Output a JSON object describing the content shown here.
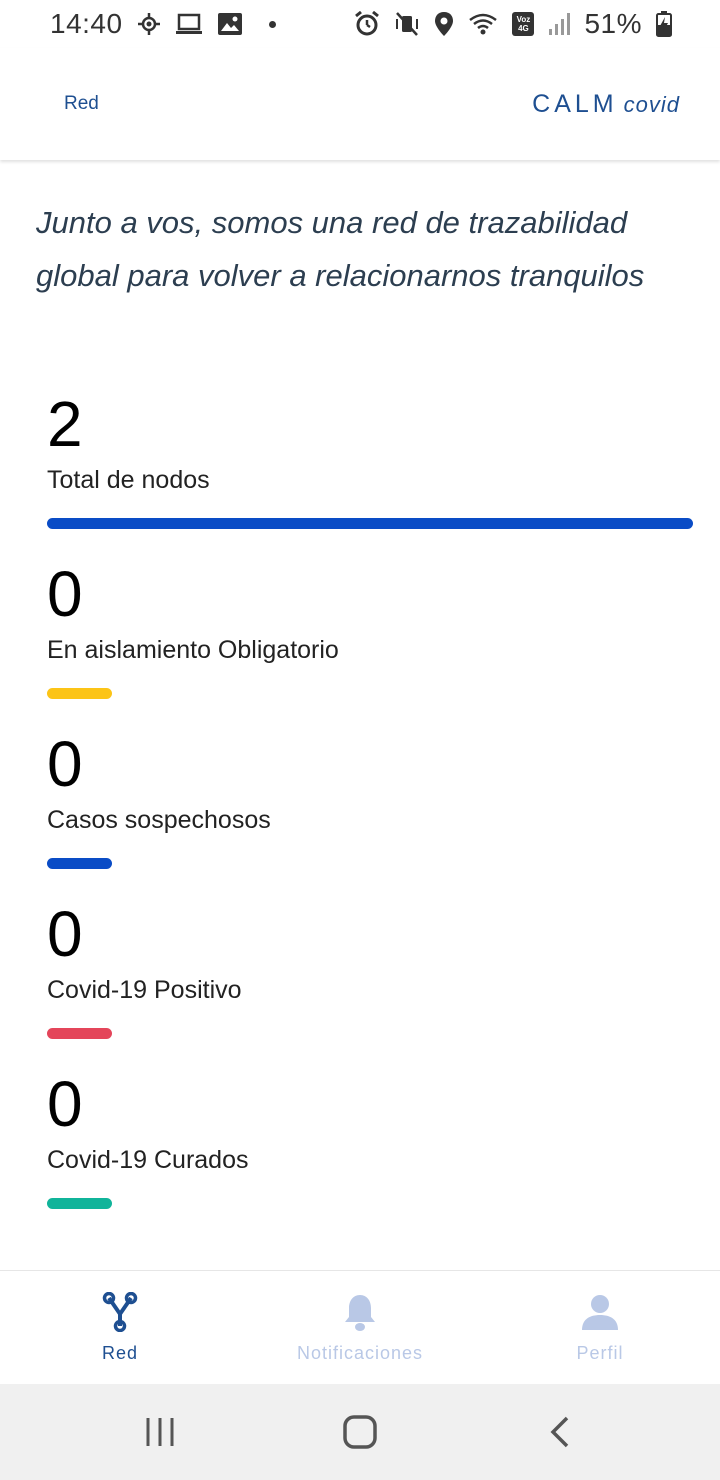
{
  "status_bar": {
    "time": "14:40",
    "battery": "51%",
    "voz_label": "Voz",
    "network_label": "4G"
  },
  "header": {
    "title": "Red",
    "brand_main": "CALM",
    "brand_sub": "covid"
  },
  "tagline": "Junto a vos, somos una red de trazabilidad global para volver a relacionarnos tranquilos",
  "stats": [
    {
      "value": "2",
      "label": "Total de nodos",
      "color": "#0a4cc6",
      "fraction": 1.0
    },
    {
      "value": "0",
      "label": "En aislamiento Obligatorio",
      "color": "#fcc416",
      "fraction": 0.0
    },
    {
      "value": "0",
      "label": "Casos sospechosos",
      "color": "#0a4cc6",
      "fraction": 0.0
    },
    {
      "value": "0",
      "label": "Covid-19 Positivo",
      "color": "#e4455a",
      "fraction": 0.0
    },
    {
      "value": "0",
      "label": "Covid-19 Curados",
      "color": "#10b49a",
      "fraction": 0.0
    }
  ],
  "bottom_nav": [
    {
      "label": "Red",
      "icon": "network-icon",
      "active": true
    },
    {
      "label": "Notificaciones",
      "icon": "bell-icon",
      "active": false
    },
    {
      "label": "Perfil",
      "icon": "person-icon",
      "active": false
    }
  ],
  "colors": {
    "primary": "#1e4f91",
    "inactive": "#b9c8e6"
  }
}
